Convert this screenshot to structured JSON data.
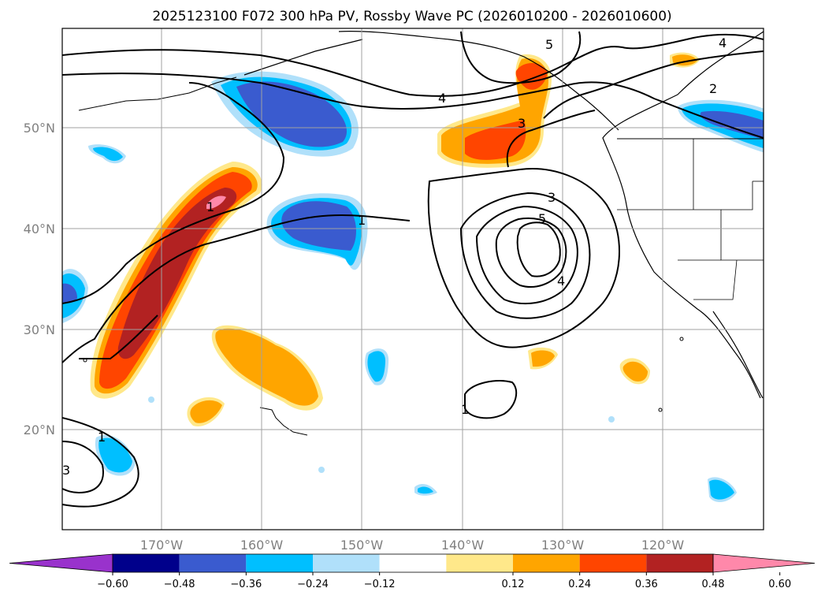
{
  "title": "2025123100 F072 300 hPa PV, Rossby Wave PC (2026010200 - 2026010600)",
  "axes": {
    "lon_labels": [
      "170°W",
      "160°W",
      "150°W",
      "140°W",
      "130°W",
      "120°W"
    ],
    "lat_labels": [
      "50°N",
      "40°N",
      "30°N",
      "20°N"
    ]
  },
  "colorbar": {
    "ticks": [
      "−0.60",
      "−0.48",
      "−0.36",
      "−0.24",
      "−0.12",
      "0.12",
      "0.24",
      "0.36",
      "0.48",
      "0.60"
    ],
    "colors": [
      "#9932cc",
      "#00008b",
      "#3a5bcf",
      "#00bfff",
      "#b0e0fa",
      "#ffffff",
      "#ffe88a",
      "#ffa500",
      "#ff4500",
      "#b22222",
      "#ff88aa"
    ]
  },
  "contour_labels": [
    "1",
    "2",
    "3",
    "4",
    "5",
    "1",
    "3",
    "4",
    "5",
    "1",
    "1",
    "4",
    "3"
  ]
}
